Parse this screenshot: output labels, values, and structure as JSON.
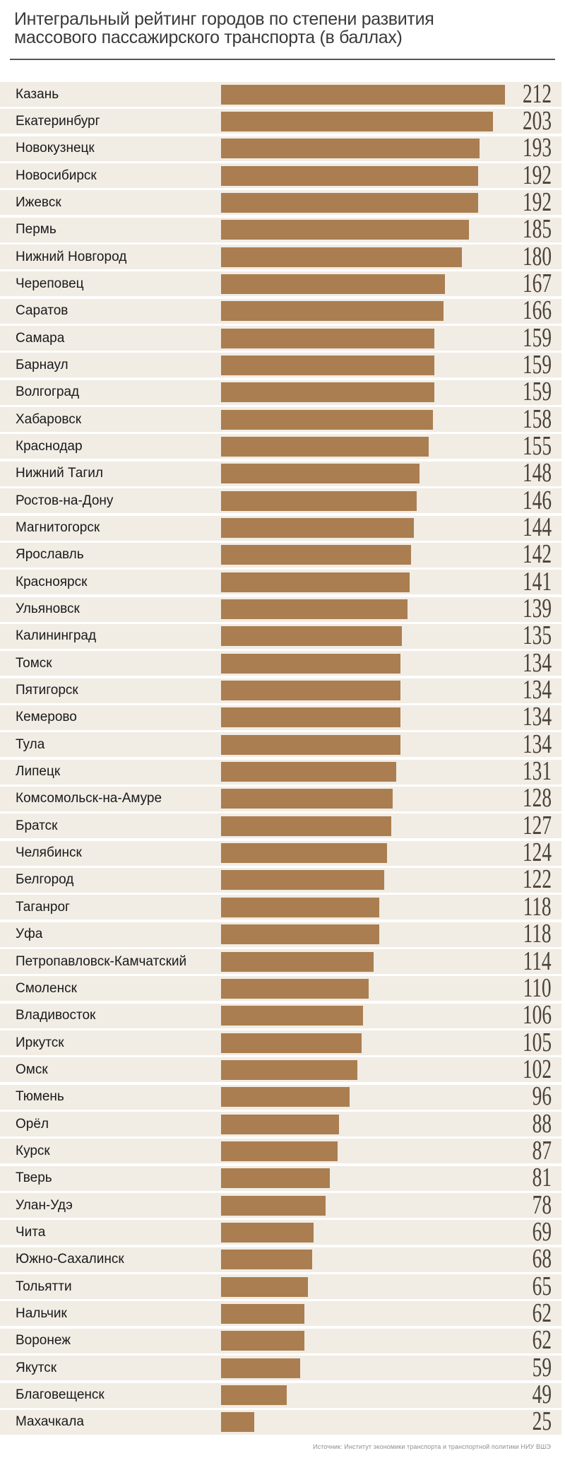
{
  "title": {
    "line1": "Интегральный рейтинг городов по степени развития",
    "line2": "массового пассажирского транспорта (в баллах)"
  },
  "source": "Источник: Институт экономики транспорта и транспортной политики НИУ ВШЭ",
  "colors": {
    "bar": "#aa7e51",
    "row_bg": "#f1ece4",
    "value_text": "#4a4238",
    "label_text": "#1a1a1a",
    "title_text": "#3a3a3a",
    "rule": "#555555",
    "source_text": "#8f8f8f",
    "background": "#ffffff"
  },
  "chart_data": {
    "type": "bar",
    "orientation": "horizontal",
    "title": "Интегральный рейтинг городов по степени развития массового пассажирского транспорта (в баллах)",
    "xlabel": "",
    "ylabel": "",
    "value_range": [
      0,
      212
    ],
    "grid": false,
    "legend": false,
    "categories": [
      "Казань",
      "Екатеринбург",
      "Новокузнецк",
      "Новосибирск",
      "Ижевск",
      "Пермь",
      "Нижний Новгород",
      "Череповец",
      "Саратов",
      "Самара",
      "Барнаул",
      "Волгоград",
      "Хабаровск",
      "Краснодар",
      "Нижний Тагил",
      "Ростов-на-Дону",
      "Магнитогорск",
      "Ярославль",
      "Красноярск",
      "Ульяновск",
      "Калининград",
      "Томск",
      "Пятигорск",
      "Кемерово",
      "Тула",
      "Липецк",
      "Комсомольск-на-Амуре",
      "Братск",
      "Челябинск",
      "Белгород",
      "Таганрог",
      "Уфа",
      "Петропавловск-Камчатский",
      "Смоленск",
      "Владивосток",
      "Иркутск",
      "Омск",
      "Тюмень",
      "Орёл",
      "Курск",
      "Тверь",
      "Улан-Удэ",
      "Чита",
      "Южно-Сахалинск",
      "Тольятти",
      "Нальчик",
      "Воронеж",
      "Якутск",
      "Благовещенск",
      "Махачкала"
    ],
    "values": [
      212,
      203,
      193,
      192,
      192,
      185,
      180,
      167,
      166,
      159,
      159,
      159,
      158,
      155,
      148,
      146,
      144,
      142,
      141,
      139,
      135,
      134,
      134,
      134,
      134,
      131,
      128,
      127,
      124,
      122,
      118,
      118,
      114,
      110,
      106,
      105,
      102,
      96,
      88,
      87,
      81,
      78,
      69,
      68,
      65,
      62,
      62,
      59,
      49,
      25
    ]
  }
}
